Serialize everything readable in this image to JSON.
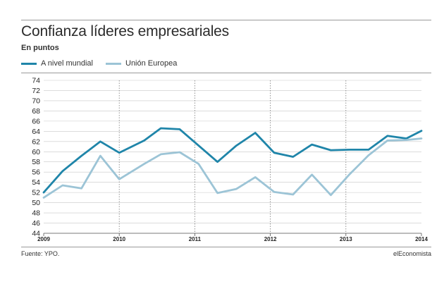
{
  "header": {
    "title": "Confianza líderes empresariales",
    "subtitle": "En puntos"
  },
  "footer": {
    "source": "Fuente: YPO.",
    "brand": "elEconomista"
  },
  "colors": {
    "series_world": "#1f85a9",
    "series_eu": "#9cc4d6",
    "grid": "#c8c8c8",
    "text": "#222222"
  },
  "chart_data": {
    "type": "line",
    "title": "Confianza líderes empresariales",
    "subtitle": "En puntos",
    "xlabel": "",
    "ylabel": "",
    "xlim": [
      2009,
      2014
    ],
    "ylim": [
      44,
      74
    ],
    "ytick_step": 2,
    "yticks": [
      "44",
      "46",
      "48",
      "50",
      "52",
      "54",
      "56",
      "58",
      "60",
      "62",
      "64",
      "66",
      "68",
      "70",
      "72",
      "74"
    ],
    "xticks": [
      {
        "value": 2009,
        "label": "2009"
      },
      {
        "value": 2010,
        "label": "2010"
      },
      {
        "value": 2011,
        "label": "2011"
      },
      {
        "value": 2012,
        "label": "2012"
      },
      {
        "value": 2013,
        "label": "2013"
      },
      {
        "value": 2014,
        "label": "2014"
      }
    ],
    "grid": true,
    "legend_position": "top-left",
    "series": [
      {
        "name": "A nivel mundial",
        "color": "#1f85a9",
        "x": [
          2009.0,
          2009.25,
          2009.5,
          2009.75,
          2010.0,
          2010.33,
          2010.55,
          2010.8,
          2011.05,
          2011.3,
          2011.55,
          2011.8,
          2012.05,
          2012.3,
          2012.55,
          2012.8,
          2013.05,
          2013.3,
          2013.55,
          2013.8,
          2014.0
        ],
        "values": [
          52.0,
          56.2,
          59.2,
          62.0,
          59.8,
          62.2,
          64.6,
          64.4,
          61.2,
          58.0,
          61.2,
          63.7,
          59.8,
          59.0,
          61.4,
          60.3,
          60.4,
          60.4,
          63.1,
          62.6,
          64.1
        ]
      },
      {
        "name": "Unión Europea",
        "color": "#9cc4d6",
        "x": [
          2009.0,
          2009.25,
          2009.5,
          2009.75,
          2010.0,
          2010.33,
          2010.55,
          2010.8,
          2011.05,
          2011.3,
          2011.55,
          2011.8,
          2012.05,
          2012.3,
          2012.55,
          2012.8,
          2013.05,
          2013.3,
          2013.55,
          2013.8,
          2014.0
        ],
        "values": [
          51.0,
          53.4,
          52.8,
          59.2,
          54.6,
          57.6,
          59.5,
          59.9,
          57.6,
          51.9,
          52.7,
          55.0,
          52.1,
          51.6,
          55.5,
          51.5,
          55.6,
          59.3,
          62.2,
          62.3,
          62.6
        ]
      }
    ]
  }
}
